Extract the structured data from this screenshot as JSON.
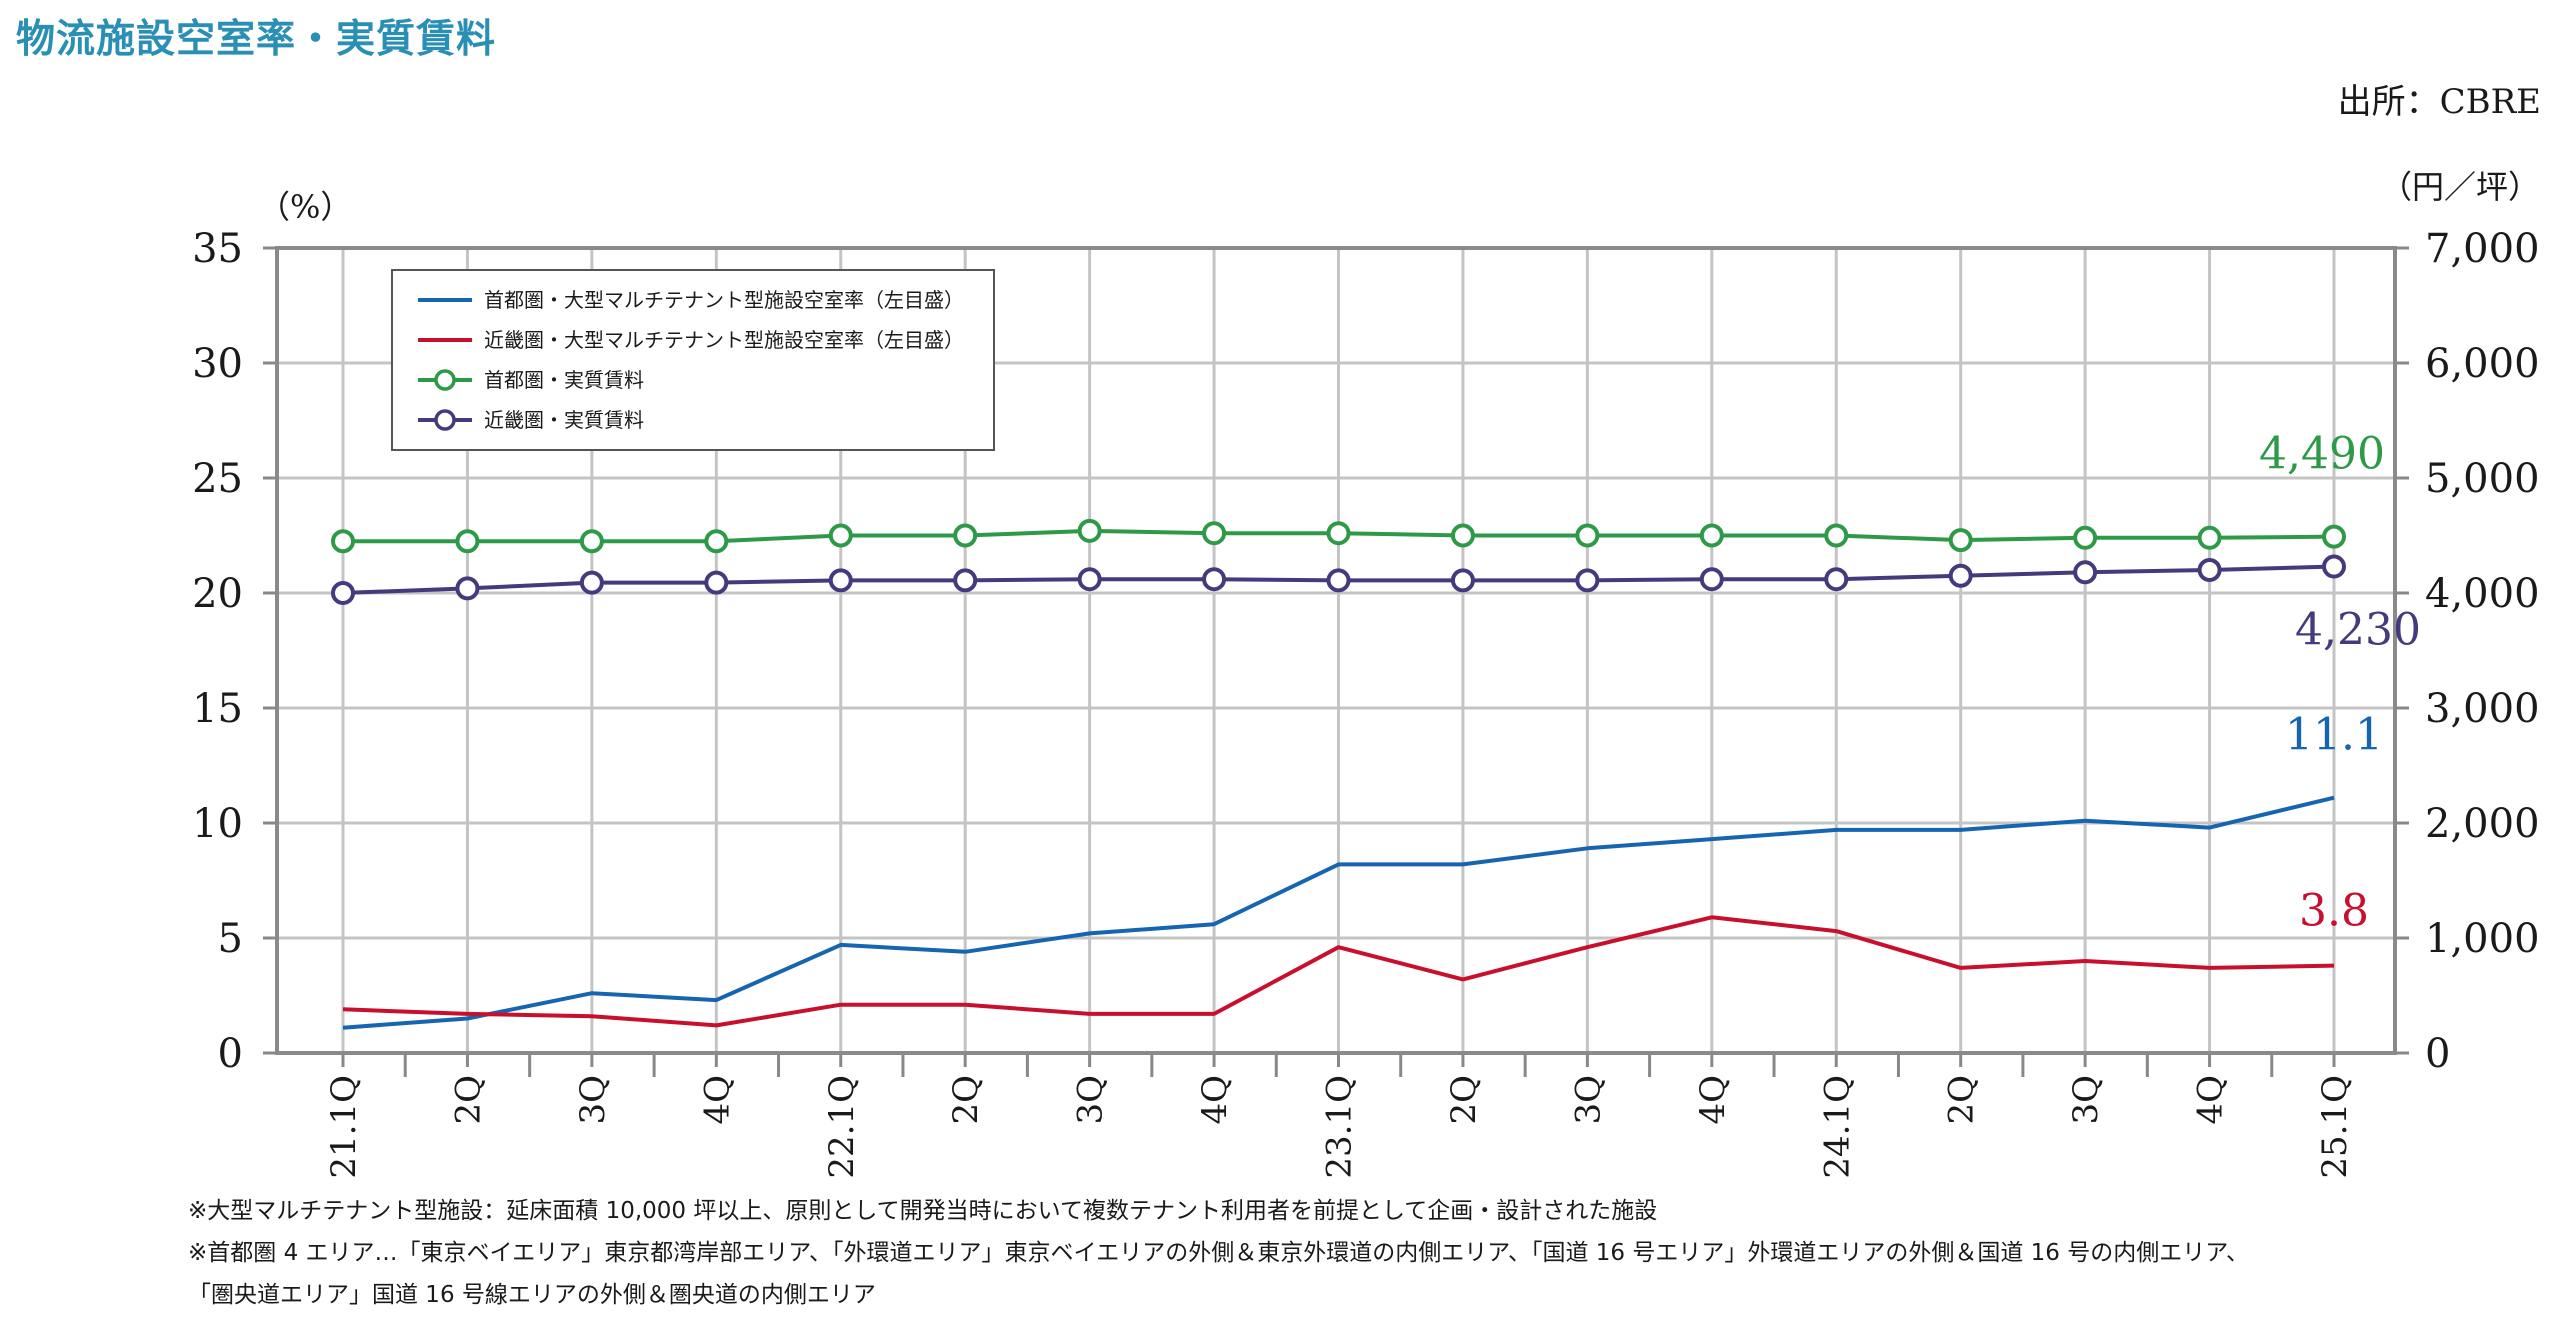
{
  "title": "物流施設空室率・実質賃料",
  "source": "出所：CBRE",
  "notes": [
    "※大型マルチテナント型施設：延床面積 10,000 坪以上、原則として開発当時において複数テナント利用者を前提として企画・設計された施設",
    "※首都圏 4 エリア…「東京ベイエリア」東京都湾岸部エリア、「外環道エリア」東京ベイエリアの外側＆東京外環道の内側エリア、「国道 16 号エリア」外環道エリアの外側＆国道 16 号の内側エリア、",
    "「圏央道エリア」国道 16 号線エリアの外側＆圏央道の内側エリア"
  ],
  "chart_data": {
    "type": "line",
    "title": "物流施設空室率・実質賃料",
    "y_left_unit": "（%）",
    "y_right_unit": "（円／坪）",
    "y_left_range": [
      0,
      35
    ],
    "y_right_range": [
      0,
      7000
    ],
    "y_left_ticks": [
      "0",
      "5",
      "10",
      "15",
      "20",
      "25",
      "30",
      "35"
    ],
    "y_right_ticks": [
      "0",
      "1,000",
      "2,000",
      "3,000",
      "4,000",
      "5,000",
      "6,000",
      "7,000"
    ],
    "categories": [
      "21.1Q",
      "2Q",
      "3Q",
      "4Q",
      "22.1Q",
      "2Q",
      "3Q",
      "4Q",
      "23.1Q",
      "2Q",
      "3Q",
      "4Q",
      "24.1Q",
      "2Q",
      "3Q",
      "4Q",
      "25.1Q"
    ],
    "grid": true,
    "legend_position": "top-left",
    "series": [
      {
        "name": "首都圏・大型マルチテナント型施設空室率（左目盛）",
        "axis": "left",
        "color": "#1565b0",
        "marker": false,
        "values": [
          1.1,
          1.5,
          2.6,
          2.3,
          4.7,
          4.4,
          5.2,
          5.6,
          8.2,
          8.2,
          8.9,
          9.3,
          9.7,
          9.7,
          10.1,
          9.8,
          11.1
        ],
        "end_label": "11.1"
      },
      {
        "name": "近畿圏・大型マルチテナント型施設空室率（左目盛）",
        "axis": "left",
        "color": "#c8102e",
        "marker": false,
        "values": [
          1.9,
          1.7,
          1.6,
          1.2,
          2.1,
          2.1,
          1.7,
          1.7,
          4.6,
          3.2,
          4.6,
          5.9,
          5.3,
          3.7,
          4.0,
          3.7,
          3.8
        ],
        "end_label": "3.8"
      },
      {
        "name": "首都圏・実質賃料",
        "axis": "right",
        "color": "#2e9a48",
        "marker": true,
        "values": [
          4450,
          4450,
          4450,
          4450,
          4500,
          4500,
          4540,
          4520,
          4520,
          4500,
          4500,
          4500,
          4500,
          4460,
          4480,
          4480,
          4490
        ],
        "end_label": "4,490"
      },
      {
        "name": "近畿圏・実質賃料",
        "axis": "right",
        "color": "#46397e",
        "marker": true,
        "values": [
          4000,
          4040,
          4090,
          4090,
          4110,
          4110,
          4120,
          4120,
          4110,
          4110,
          4110,
          4120,
          4120,
          4150,
          4180,
          4200,
          4230
        ],
        "end_label": "4,230"
      }
    ]
  }
}
